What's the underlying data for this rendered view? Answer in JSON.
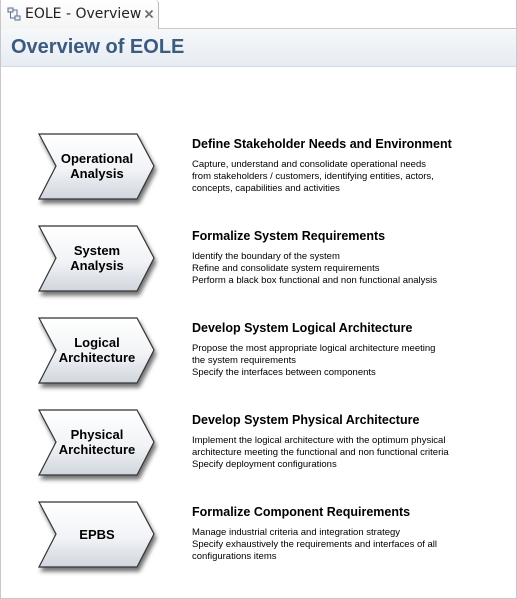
{
  "tab": {
    "label": "EOLE - Overview",
    "icon": "eole-diagram-icon",
    "close_icon": "close-icon"
  },
  "header": {
    "title": "Overview of EOLE"
  },
  "phases": [
    {
      "label": "Operational\nAnalysis",
      "title": "Define Stakeholder Needs and Environment",
      "lines": [
        "Capture, understand and consolidate operational needs",
        "from stakeholders / customers, identifying entities, actors,",
        "concepts, capabilities and activities"
      ]
    },
    {
      "label": "System\nAnalysis",
      "title": "Formalize System Requirements",
      "lines": [
        "Identify the boundary of the system",
        "Refine and consolidate system requirements",
        "Perform a black box functional and non functional analysis"
      ]
    },
    {
      "label": "Logical\nArchitecture",
      "title": "Develop System Logical Architecture",
      "lines": [
        "Propose the most appropriate logical architecture meeting",
        "the system requirements",
        "Specify the interfaces between components"
      ]
    },
    {
      "label": "Physical\nArchitecture",
      "title": "Develop System Physical Architecture",
      "lines": [
        "Implement the logical architecture with the optimum physical",
        "architecture meeting the functional and non functional criteria",
        "Specify deployment configurations"
      ]
    },
    {
      "label": "EPBS",
      "title": "Formalize Component Requirements",
      "lines": [
        "Manage industrial criteria and integration strategy",
        "Specify exhaustively the requirements and interfaces of all",
        "configurations items"
      ]
    }
  ]
}
